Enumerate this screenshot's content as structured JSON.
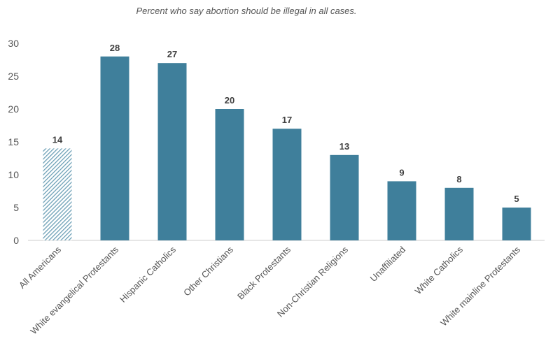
{
  "chart_data": {
    "type": "bar",
    "subtitle": "Percent who say abortion should be illegal in all cases.",
    "categories": [
      "All Americans",
      "White evangelical Protestants",
      "Hispanic Catholics",
      "Other Christians",
      "Black Protestants",
      "Non-Christian Religions",
      "Unaffiliated",
      "White Catholics",
      "White mainline Protestants"
    ],
    "values": [
      14,
      28,
      27,
      20,
      17,
      13,
      9,
      8,
      5
    ],
    "data_labels": [
      "14",
      "28",
      "27",
      "20",
      "17",
      "13",
      "9",
      "8",
      "5"
    ],
    "ylim": [
      0,
      30
    ],
    "yticks": [
      "0",
      "5",
      "10",
      "15",
      "20",
      "25",
      "30"
    ],
    "grid": false,
    "bar_color": "#3f7f9b",
    "highlight_style": "hatched",
    "highlight_index": 0,
    "highlight_color": "#6c9fb6"
  }
}
